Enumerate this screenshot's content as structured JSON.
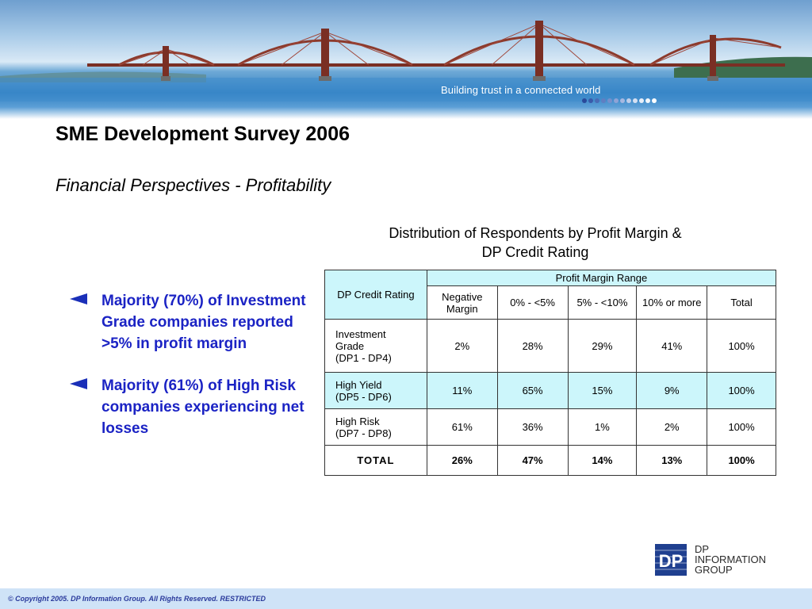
{
  "banner": {
    "tagline": "Building trust in a connected world",
    "dot_colors": [
      "#2a4a9a",
      "#3a5aaa",
      "#4a6bb6",
      "#5f7fc2",
      "#7690cc",
      "#8ea3d6",
      "#a6b8e0",
      "#c0cfea",
      "#d6e0f2",
      "#e8eef8",
      "#f4f7fc",
      "#ffffff"
    ]
  },
  "slide": {
    "title": "SME Development Survey 2006",
    "subtitle": "Financial Perspectives  -  Profitability"
  },
  "bullets": [
    {
      "text": "Majority (70%) of Investment Grade companies reported >5% in profit margin"
    },
    {
      "text": "Majority (61%) of High Risk companies experiencing net losses"
    }
  ],
  "table": {
    "title_line1": "Distribution of Respondents by Profit Margin &",
    "title_line2": "DP Credit Rating",
    "header_row_label": "DP Credit Rating",
    "group_header": "Profit Margin Range",
    "columns": [
      "Negative Margin",
      "0% - <5%",
      "5% - <10%",
      "10% or more",
      "Total"
    ],
    "rows": [
      {
        "label_lines": [
          "Investment",
          "Grade",
          "(DP1 - DP4)"
        ],
        "values": [
          "2%",
          "28%",
          "29%",
          "41%",
          "100%"
        ]
      },
      {
        "label_lines": [
          "High Yield",
          "(DP5 - DP6)"
        ],
        "values": [
          "11%",
          "65%",
          "15%",
          "9%",
          "100%"
        ]
      },
      {
        "label_lines": [
          "High Risk",
          "(DP7 - DP8)"
        ],
        "values": [
          "61%",
          "36%",
          "1%",
          "2%",
          "100%"
        ]
      }
    ],
    "total": {
      "label": "TOTAL",
      "values": [
        "26%",
        "47%",
        "14%",
        "13%",
        "100%"
      ]
    }
  },
  "logo": {
    "mark_text": "DP",
    "line1": "DP",
    "line2": "INFORMATION",
    "line3": "GROUP",
    "color": "#1f3f8f"
  },
  "footer": {
    "copyright": "© Copyright 2005. DP Information Group. All Rights Reserved. RESTRICTED"
  }
}
